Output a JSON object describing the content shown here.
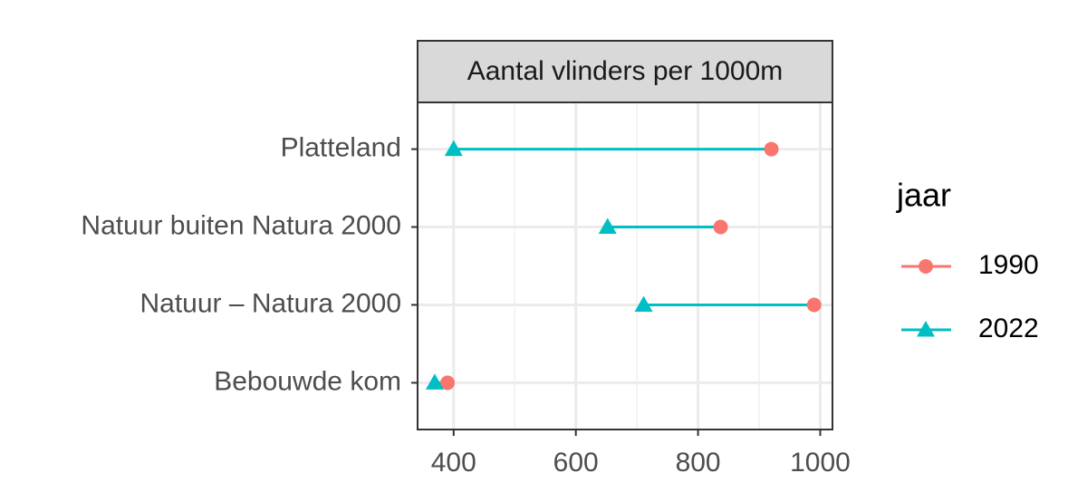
{
  "chart_data": {
    "type": "dumbbell",
    "title": "Aantal vlinders per 1000m",
    "legend_title": "jaar",
    "categories": [
      "Platteland",
      "Natuur buiten Natura 2000",
      "Natuur – Natura 2000",
      "Bebouwde kom"
    ],
    "series": [
      {
        "name": "1990",
        "color": "#F8766D",
        "marker": "circle",
        "values": [
          920,
          837,
          990,
          390
        ]
      },
      {
        "name": "2022",
        "color": "#00BFC4",
        "marker": "triangle",
        "values": [
          400,
          652,
          711,
          369
        ]
      }
    ],
    "segment_color": "#00BFC4",
    "xlim": [
      341,
      1020
    ],
    "xticks": [
      400,
      600,
      800,
      1000
    ],
    "grid": true,
    "legend": "right"
  }
}
